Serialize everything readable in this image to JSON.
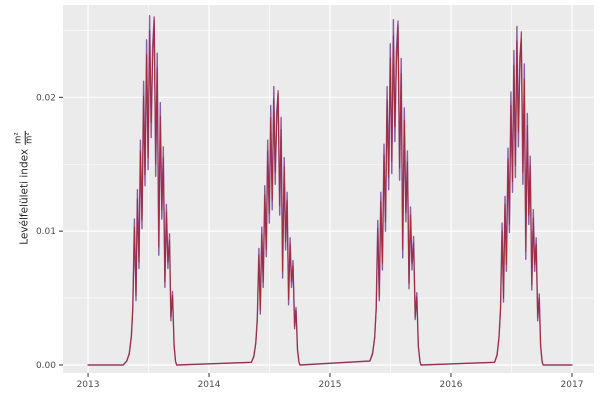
{
  "figure": {
    "background": "#FFFFFF",
    "panel_background": "#EBEBEB",
    "grid_color": "#FFFFFF",
    "tick_mark_color": "#333333",
    "tick_label_color": "#4D4D4D",
    "axis_title_color": "#262626"
  },
  "y_axis": {
    "title_text": "Levélfelületi index",
    "unit_numerator": "m²",
    "unit_denominator": "m²"
  },
  "chart_data": {
    "type": "line",
    "title": "",
    "xlabel": "",
    "ylabel": "Levélfelületi index (m²/m²)",
    "grid": "on",
    "legend": "none",
    "xlim": [
      2012.793,
      2017.182
    ],
    "ylim": [
      -0.0006,
      0.0269
    ],
    "x_ticks": {
      "values": [
        2013,
        2014,
        2015,
        2016,
        2017
      ],
      "labels": [
        "2013",
        "2014",
        "2015",
        "2016",
        "2017"
      ]
    },
    "y_ticks": {
      "values": [
        0,
        0.01,
        0.02
      ],
      "labels": [
        "0.00",
        "0.01",
        "0.02"
      ]
    },
    "x_minor": [
      2013.5,
      2014.5,
      2015.5,
      2016.5
    ],
    "y_minor": [
      0.005,
      0.015,
      0.025
    ],
    "x": [
      2013.0,
      2013.29,
      2013.32,
      2013.341,
      2013.358,
      2013.37,
      2013.383,
      2013.396,
      2013.408,
      2013.421,
      2013.433,
      2013.446,
      2013.459,
      2013.471,
      2013.484,
      2013.496,
      2013.509,
      2013.522,
      2013.534,
      2013.547,
      2013.559,
      2013.572,
      2013.585,
      2013.597,
      2013.61,
      2013.622,
      2013.635,
      2013.648,
      2013.66,
      2013.673,
      2013.685,
      2013.698,
      2013.711,
      2013.723,
      2013.732,
      2014.35,
      2014.371,
      2014.387,
      2014.399,
      2014.412,
      2014.424,
      2014.436,
      2014.448,
      2014.461,
      2014.473,
      2014.485,
      2014.498,
      2014.51,
      2014.522,
      2014.535,
      2014.547,
      2014.559,
      2014.571,
      2014.584,
      2014.596,
      2014.608,
      2014.621,
      2014.633,
      2014.645,
      2014.658,
      2014.67,
      2014.682,
      2014.694,
      2014.707,
      2014.719,
      2014.731,
      2014.744,
      2014.752,
      2015.33,
      2015.352,
      2015.369,
      2015.382,
      2015.395,
      2015.407,
      2015.42,
      2015.433,
      2015.446,
      2015.459,
      2015.472,
      2015.485,
      2015.498,
      2015.511,
      2015.524,
      2015.536,
      2015.549,
      2015.562,
      2015.575,
      2015.588,
      2015.601,
      2015.614,
      2015.627,
      2015.64,
      2015.653,
      2015.665,
      2015.678,
      2015.691,
      2015.704,
      2015.717,
      2015.73,
      2015.743,
      2015.751,
      2016.36,
      2016.381,
      2016.397,
      2016.409,
      2016.422,
      2016.434,
      2016.446,
      2016.458,
      2016.471,
      2016.483,
      2016.495,
      2016.508,
      2016.52,
      2016.532,
      2016.545,
      2016.557,
      2016.569,
      2016.581,
      2016.594,
      2016.606,
      2016.618,
      2016.631,
      2016.643,
      2016.655,
      2016.668,
      2016.68,
      2016.692,
      2016.704,
      2016.717,
      2016.729,
      2016.741,
      2016.754,
      2016.762,
      2017.0
    ],
    "series": [
      {
        "name": "series-purple",
        "color": "#8B5CA5",
        "y": [
          0,
          0,
          0.0003,
          0.0009,
          0.0022,
          0.0043,
          0.0109,
          0.0048,
          0.0131,
          0.0072,
          0.0168,
          0.0102,
          0.0212,
          0.0134,
          0.0243,
          0.0146,
          0.0261,
          0.017,
          0.0238,
          0.026,
          0.0141,
          0.0233,
          0.0082,
          0.0196,
          0.0109,
          0.0163,
          0.0058,
          0.012,
          0.0072,
          0.0098,
          0.0033,
          0.0055,
          0.0014,
          0.0003,
          0,
          0.0002,
          0.0007,
          0.0017,
          0.0035,
          0.0087,
          0.0038,
          0.0103,
          0.0058,
          0.0134,
          0.0081,
          0.0168,
          0.0106,
          0.0194,
          0.0116,
          0.0208,
          0.0135,
          0.0189,
          0.0203,
          0.0112,
          0.0185,
          0.0065,
          0.0155,
          0.0086,
          0.0129,
          0.0045,
          0.0095,
          0.0058,
          0.0078,
          0.0027,
          0.0043,
          0.0011,
          0.0002,
          0,
          0.0003,
          0.0009,
          0.0021,
          0.0043,
          0.0108,
          0.0048,
          0.0129,
          0.0071,
          0.0165,
          0.01,
          0.0208,
          0.0131,
          0.024,
          0.0143,
          0.0258,
          0.0167,
          0.0235,
          0.0257,
          0.0138,
          0.0229,
          0.008,
          0.0192,
          0.0107,
          0.016,
          0.0057,
          0.0118,
          0.0071,
          0.0096,
          0.0034,
          0.0054,
          0.0014,
          0.0003,
          0,
          0.0002,
          0.0008,
          0.0021,
          0.0042,
          0.0106,
          0.0047,
          0.0126,
          0.007,
          0.0162,
          0.0099,
          0.0204,
          0.0129,
          0.0235,
          0.014,
          0.0253,
          0.0163,
          0.023,
          0.0244,
          0.0135,
          0.0225,
          0.0079,
          0.0188,
          0.0105,
          0.0156,
          0.0056,
          0.0116,
          0.007,
          0.0095,
          0.0033,
          0.0053,
          0.0014,
          0.0002,
          0,
          0
        ]
      },
      {
        "name": "series-red",
        "color": "#A12C3F",
        "y": [
          0,
          0,
          0.0003,
          0.0008,
          0.0021,
          0.0041,
          0.0103,
          0.0052,
          0.0124,
          0.0077,
          0.016,
          0.0108,
          0.0201,
          0.0142,
          0.0232,
          0.0155,
          0.025,
          0.0181,
          0.0227,
          0.0258,
          0.015,
          0.0222,
          0.0088,
          0.0186,
          0.0116,
          0.0155,
          0.0062,
          0.0114,
          0.0077,
          0.0093,
          0.0036,
          0.0052,
          0.0015,
          0.0003,
          0,
          0.0002,
          0.0006,
          0.0016,
          0.0033,
          0.0082,
          0.0041,
          0.0098,
          0.0062,
          0.0127,
          0.0086,
          0.016,
          0.0113,
          0.0185,
          0.0123,
          0.0199,
          0.0144,
          0.018,
          0.0205,
          0.0119,
          0.0176,
          0.007,
          0.0148,
          0.0092,
          0.0123,
          0.0049,
          0.009,
          0.0062,
          0.0074,
          0.0029,
          0.0041,
          0.0012,
          0.0002,
          0,
          0.0003,
          0.0008,
          0.002,
          0.0041,
          0.0102,
          0.0051,
          0.0122,
          0.0076,
          0.0157,
          0.0107,
          0.0198,
          0.014,
          0.0229,
          0.0152,
          0.0246,
          0.0178,
          0.0224,
          0.0254,
          0.0147,
          0.0218,
          0.0086,
          0.0183,
          0.0114,
          0.0152,
          0.0061,
          0.0112,
          0.0076,
          0.0091,
          0.0036,
          0.0051,
          0.0015,
          0.0003,
          0,
          0.0002,
          0.0007,
          0.002,
          0.004,
          0.01,
          0.005,
          0.012,
          0.0075,
          0.0154,
          0.0105,
          0.0194,
          0.0137,
          0.0224,
          0.0149,
          0.0242,
          0.0174,
          0.0219,
          0.0249,
          0.0144,
          0.0214,
          0.0085,
          0.0179,
          0.0112,
          0.0149,
          0.006,
          0.011,
          0.0075,
          0.009,
          0.0035,
          0.005,
          0.0015,
          0.0002,
          0,
          0
        ]
      }
    ]
  }
}
